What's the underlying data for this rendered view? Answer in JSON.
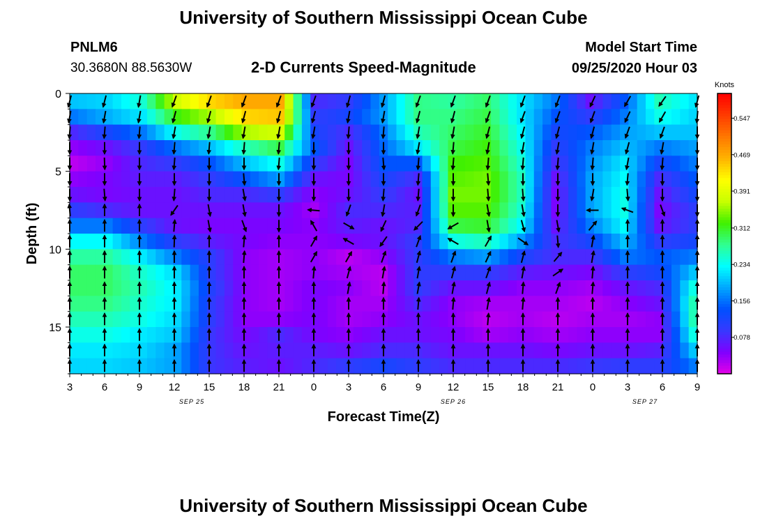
{
  "header": {
    "title": "University of Southern Mississippi Ocean Cube",
    "station_id": "PNLM6",
    "station_coords": "30.3680N 88.5630W",
    "plot_title": "2-D Currents Speed-Magnitude",
    "model_start_label": "Model Start Time",
    "model_start_value": "09/25/2020 Hour 03"
  },
  "footer": {
    "title": "University of Southern Mississippi Ocean Cube"
  },
  "chart_data": {
    "type": "heatmap",
    "title": "2-D Currents Speed-Magnitude",
    "xlabel": "Forecast Time(Z)",
    "ylabel": "Depth (ft)",
    "x_tick_labels": [
      "3",
      "6",
      "9",
      "12",
      "15",
      "18",
      "21",
      "0",
      "3",
      "6",
      "9",
      "12",
      "15",
      "18",
      "21",
      "0",
      "3",
      "6",
      "9"
    ],
    "date_labels": [
      {
        "label": "SEP 25",
        "at_tick": 3.5
      },
      {
        "label": "SEP 26",
        "at_tick": 11
      },
      {
        "label": "SEP 27",
        "at_tick": 16.5
      }
    ],
    "y_ticks": [
      0,
      5,
      10,
      15
    ],
    "ylim": [
      0,
      18
    ],
    "y_inverted": true,
    "colorbar": {
      "unit": "Knots",
      "min": 0,
      "max": 0.6,
      "tick_values": [
        0.078,
        0.156,
        0.234,
        0.312,
        0.391,
        0.469,
        0.547
      ],
      "tick_labels": [
        "0.078",
        "0.156",
        "0.234",
        "0.312",
        "0.391",
        "0.469",
        "0.547"
      ],
      "colors": [
        "#e600e6",
        "#8000ff",
        "#3838ff",
        "#0050ff",
        "#00a6ff",
        "#00ffff",
        "#30ff90",
        "#40f000",
        "#c8ff00",
        "#ffff00",
        "#ffb300",
        "#ff7800",
        "#ff3c00",
        "#ff0000"
      ]
    },
    "depth_levels": [
      0,
      1,
      2,
      3,
      4,
      5,
      6,
      7,
      8,
      9,
      10,
      11,
      12,
      13,
      14,
      15,
      16,
      17
    ],
    "time_hours": [
      3,
      6,
      9,
      12,
      15,
      18,
      21,
      24,
      27,
      30,
      33,
      36,
      39,
      42,
      45,
      48,
      51,
      54,
      57
    ],
    "speed_knots": [
      [
        0.2,
        0.16,
        0.08,
        0.04,
        0.02,
        0.04,
        0.06,
        0.1,
        0.16,
        0.23,
        0.27,
        0.29,
        0.29,
        0.28,
        0.26,
        0.24,
        0.22,
        0.21
      ],
      [
        0.21,
        0.19,
        0.12,
        0.06,
        0.04,
        0.05,
        0.05,
        0.08,
        0.16,
        0.23,
        0.27,
        0.29,
        0.29,
        0.28,
        0.26,
        0.24,
        0.22,
        0.21
      ],
      [
        0.25,
        0.22,
        0.16,
        0.1,
        0.08,
        0.07,
        0.06,
        0.06,
        0.1,
        0.16,
        0.22,
        0.25,
        0.26,
        0.25,
        0.24,
        0.22,
        0.21,
        0.2
      ],
      [
        0.38,
        0.32,
        0.24,
        0.16,
        0.1,
        0.07,
        0.06,
        0.06,
        0.06,
        0.1,
        0.16,
        0.21,
        0.22,
        0.22,
        0.21,
        0.2,
        0.18,
        0.18
      ],
      [
        0.44,
        0.36,
        0.28,
        0.2,
        0.14,
        0.1,
        0.08,
        0.06,
        0.05,
        0.07,
        0.1,
        0.1,
        0.11,
        0.1,
        0.1,
        0.09,
        0.09,
        0.09
      ],
      [
        0.47,
        0.44,
        0.36,
        0.26,
        0.2,
        0.14,
        0.08,
        0.06,
        0.05,
        0.05,
        0.04,
        0.04,
        0.04,
        0.04,
        0.04,
        0.05,
        0.06,
        0.07
      ],
      [
        0.47,
        0.45,
        0.38,
        0.3,
        0.24,
        0.18,
        0.1,
        0.06,
        0.05,
        0.04,
        0.03,
        0.03,
        0.03,
        0.03,
        0.04,
        0.08,
        0.07,
        0.06
      ],
      [
        0.08,
        0.1,
        0.12,
        0.14,
        0.1,
        0.06,
        0.04,
        0.03,
        0.04,
        0.04,
        0.04,
        0.04,
        0.05,
        0.05,
        0.05,
        0.05,
        0.07,
        0.08
      ],
      [
        0.1,
        0.12,
        0.08,
        0.06,
        0.05,
        0.05,
        0.06,
        0.08,
        0.07,
        0.05,
        0.02,
        0.03,
        0.04,
        0.03,
        0.03,
        0.04,
        0.06,
        0.1
      ],
      [
        0.18,
        0.18,
        0.16,
        0.15,
        0.14,
        0.12,
        0.1,
        0.08,
        0.06,
        0.06,
        0.04,
        0.02,
        0.02,
        0.03,
        0.04,
        0.06,
        0.08,
        0.12
      ],
      [
        0.28,
        0.28,
        0.26,
        0.22,
        0.14,
        0.08,
        0.06,
        0.07,
        0.08,
        0.1,
        0.1,
        0.1,
        0.1,
        0.08,
        0.06,
        0.06,
        0.08,
        0.1
      ],
      [
        0.27,
        0.28,
        0.29,
        0.3,
        0.32,
        0.33,
        0.34,
        0.33,
        0.3,
        0.24,
        0.16,
        0.1,
        0.06,
        0.04,
        0.04,
        0.05,
        0.06,
        0.08
      ],
      [
        0.29,
        0.3,
        0.31,
        0.32,
        0.33,
        0.34,
        0.34,
        0.33,
        0.31,
        0.26,
        0.18,
        0.1,
        0.06,
        0.03,
        0.02,
        0.03,
        0.06,
        0.08
      ],
      [
        0.22,
        0.22,
        0.23,
        0.24,
        0.25,
        0.26,
        0.26,
        0.25,
        0.23,
        0.18,
        0.12,
        0.07,
        0.04,
        0.03,
        0.03,
        0.04,
        0.06,
        0.08
      ],
      [
        0.16,
        0.14,
        0.12,
        0.1,
        0.08,
        0.06,
        0.05,
        0.05,
        0.06,
        0.08,
        0.08,
        0.06,
        0.04,
        0.03,
        0.02,
        0.03,
        0.05,
        0.08
      ],
      [
        0.06,
        0.1,
        0.14,
        0.16,
        0.17,
        0.18,
        0.18,
        0.18,
        0.16,
        0.12,
        0.08,
        0.05,
        0.03,
        0.02,
        0.03,
        0.04,
        0.06,
        0.09
      ],
      [
        0.14,
        0.16,
        0.18,
        0.2,
        0.22,
        0.23,
        0.24,
        0.24,
        0.23,
        0.2,
        0.16,
        0.1,
        0.06,
        0.04,
        0.03,
        0.04,
        0.06,
        0.1
      ],
      [
        0.26,
        0.24,
        0.2,
        0.16,
        0.12,
        0.08,
        0.06,
        0.05,
        0.06,
        0.1,
        0.14,
        0.12,
        0.08,
        0.06,
        0.04,
        0.04,
        0.07,
        0.1
      ],
      [
        0.22,
        0.21,
        0.2,
        0.18,
        0.16,
        0.14,
        0.12,
        0.1,
        0.1,
        0.12,
        0.16,
        0.2,
        0.24,
        0.26,
        0.26,
        0.24,
        0.2,
        0.16
      ]
    ],
    "vector_dir_deg": [
      [
        194,
        190,
        185,
        180,
        180,
        180,
        180,
        355,
        0,
        0,
        0,
        0,
        0,
        0,
        0,
        0,
        0,
        0
      ],
      [
        194,
        190,
        185,
        180,
        178,
        180,
        175,
        0,
        0,
        0,
        0,
        0,
        0,
        0,
        0,
        0,
        0,
        0
      ],
      [
        190,
        190,
        185,
        180,
        180,
        180,
        180,
        0,
        0,
        0,
        0,
        0,
        0,
        0,
        0,
        0,
        0,
        0
      ],
      [
        200,
        195,
        190,
        185,
        185,
        180,
        185,
        215,
        5,
        2,
        0,
        0,
        0,
        0,
        0,
        0,
        0,
        0
      ],
      [
        200,
        195,
        190,
        185,
        180,
        180,
        180,
        170,
        170,
        0,
        0,
        0,
        0,
        0,
        0,
        0,
        0,
        0
      ],
      [
        200,
        195,
        190,
        185,
        180,
        175,
        170,
        170,
        160,
        5,
        5,
        0,
        0,
        0,
        0,
        0,
        0,
        0
      ],
      [
        200,
        195,
        190,
        185,
        185,
        180,
        180,
        180,
        180,
        0,
        0,
        0,
        0,
        0,
        0,
        0,
        0,
        0
      ],
      [
        200,
        195,
        190,
        180,
        180,
        180,
        180,
        275,
        330,
        30,
        30,
        5,
        0,
        0,
        0,
        0,
        0,
        0
      ],
      [
        195,
        190,
        185,
        180,
        180,
        180,
        180,
        200,
        120,
        300,
        30,
        15,
        10,
        0,
        0,
        0,
        0,
        0
      ],
      [
        195,
        190,
        185,
        180,
        175,
        180,
        185,
        190,
        205,
        215,
        20,
        10,
        5,
        0,
        0,
        0,
        0,
        0
      ],
      [
        200,
        195,
        190,
        190,
        185,
        185,
        185,
        200,
        225,
        20,
        15,
        10,
        10,
        5,
        0,
        0,
        0,
        0
      ],
      [
        200,
        195,
        190,
        185,
        185,
        180,
        180,
        180,
        240,
        300,
        20,
        15,
        10,
        5,
        0,
        0,
        0,
        0
      ],
      [
        200,
        200,
        195,
        190,
        185,
        175,
        175,
        170,
        170,
        30,
        25,
        20,
        15,
        10,
        5,
        0,
        0,
        0
      ],
      [
        200,
        200,
        195,
        190,
        185,
        180,
        175,
        170,
        165,
        125,
        15,
        10,
        5,
        5,
        0,
        0,
        0,
        0
      ],
      [
        200,
        200,
        195,
        190,
        185,
        180,
        180,
        180,
        170,
        175,
        40,
        55,
        20,
        0,
        0,
        0,
        0,
        0
      ],
      [
        205,
        200,
        195,
        190,
        185,
        180,
        190,
        270,
        40,
        10,
        10,
        5,
        5,
        0,
        0,
        0,
        0,
        0
      ],
      [
        210,
        205,
        200,
        195,
        190,
        185,
        175,
        290,
        0,
        0,
        0,
        0,
        0,
        0,
        0,
        0,
        0,
        0
      ],
      [
        215,
        210,
        200,
        190,
        185,
        180,
        180,
        160,
        0,
        0,
        0,
        0,
        0,
        0,
        0,
        0,
        0,
        0
      ],
      [
        195,
        185,
        180,
        180,
        180,
        180,
        180,
        180,
        0,
        0,
        0,
        0,
        0,
        0,
        0,
        0,
        0,
        0
      ]
    ]
  }
}
